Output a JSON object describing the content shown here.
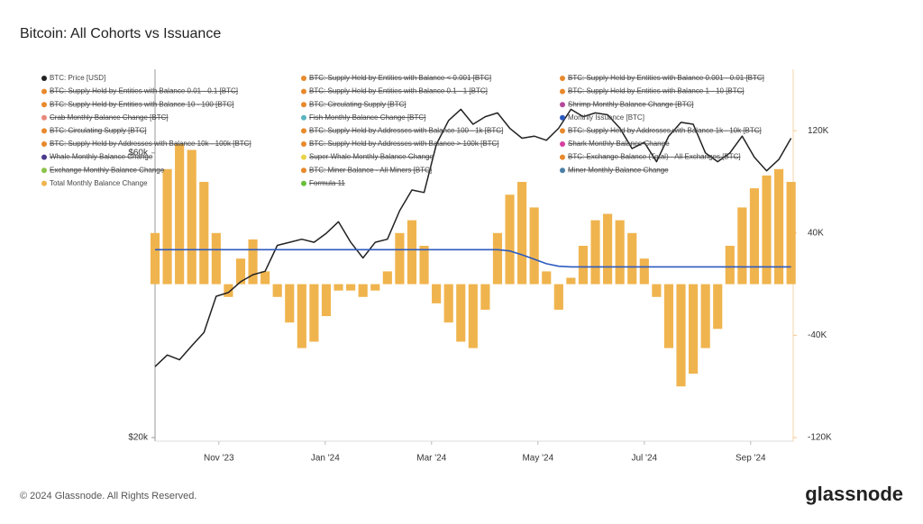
{
  "chart_data": {
    "type": "combo",
    "title": "Bitcoin: All Cohorts vs Issuance",
    "x": [
      9.8,
      10.03,
      10.26,
      10.49,
      10.72,
      10.95,
      11.18,
      11.41,
      11.64,
      11.87,
      12.1,
      12.33,
      12.56,
      12.79,
      13.02,
      13.25,
      13.48,
      13.71,
      13.94,
      14.17,
      14.4,
      14.63,
      14.86,
      15.09,
      15.32,
      15.55,
      15.78,
      16.01,
      16.24,
      16.47,
      16.7,
      16.93,
      17.16,
      17.39,
      17.62,
      17.85,
      18.08,
      18.31,
      18.54,
      18.77,
      19.0,
      19.23,
      19.46,
      19.69,
      19.92,
      20.15,
      20.38,
      20.61,
      20.84,
      21.07,
      21.3,
      21.53,
      21.76
    ],
    "xlim": [
      9.8,
      21.8
    ],
    "xticks": [
      {
        "value": 11,
        "label": "Nov '23"
      },
      {
        "value": 13,
        "label": "Jan '24"
      },
      {
        "value": 15,
        "label": "Mar '24"
      },
      {
        "value": 17,
        "label": "May '24"
      },
      {
        "value": 19,
        "label": "Jul '24"
      },
      {
        "value": 21,
        "label": "Sep '24"
      }
    ],
    "ylim": [
      20000,
      80000
    ],
    "log_scale": true,
    "yticks": [
      {
        "value": 20000,
        "label": "$20k"
      },
      {
        "value": 60000,
        "label": "$60k"
      }
    ],
    "y2lim": [
      -120000,
      161000
    ],
    "y2ticks": [
      {
        "value": 120000,
        "label": "120K"
      },
      {
        "value": 40000,
        "label": "40K"
      },
      {
        "value": -40000,
        "label": "-40K"
      },
      {
        "value": -120000,
        "label": "-120K"
      }
    ],
    "series": [
      {
        "name": "BTC: Price [USD]",
        "color": "#222222",
        "type": "line",
        "axis": "y",
        "values": [
          26300,
          27500,
          27000,
          28500,
          30000,
          34500,
          35000,
          36500,
          37500,
          38000,
          42000,
          42500,
          43000,
          42500,
          44000,
          46000,
          42500,
          40000,
          42500,
          43000,
          48000,
          52000,
          51500,
          62000,
          68000,
          71000,
          67000,
          69000,
          70000,
          66000,
          63500,
          64000,
          63000,
          66000,
          71000,
          69000,
          70000,
          69500,
          66000,
          61000,
          62500,
          58000,
          64000,
          67500,
          67000,
          60000,
          58000,
          60000,
          64000,
          59000,
          56000,
          58500,
          63500
        ]
      },
      {
        "name": "BTC: Supply Held by Entities with Balance < 0.001 [BTC]",
        "color": "#e8892c",
        "visible": false
      },
      {
        "name": "BTC: Supply Held by Entities with Balance 0.001 - 0.01 [BTC]",
        "color": "#e8892c",
        "visible": false
      },
      {
        "name": "BTC: Supply Held by Entities with Balance 0.01 - 0.1 [BTC]",
        "color": "#e8892c",
        "visible": false
      },
      {
        "name": "BTC: Supply Held by Entities with Balance 0.1 - 1 [BTC]",
        "color": "#e8892c",
        "visible": false
      },
      {
        "name": "BTC: Supply Held by Entities with Balance 1 - 10 [BTC]",
        "color": "#e8892c",
        "visible": false
      },
      {
        "name": "BTC: Supply Held by Entities with Balance 10 - 100 [BTC]",
        "color": "#e8892c",
        "visible": false
      },
      {
        "name": "BTC: Circulating Supply [BTC]",
        "color": "#e8892c",
        "visible": false
      },
      {
        "name": "Shrimp Monthly Balance Change [BTC]",
        "color": "#b44a9a",
        "visible": false
      },
      {
        "name": "Crab Monthly Balance Change [BTC]",
        "color": "#e8887a",
        "visible": false
      },
      {
        "name": "Fish Monthly Balance Change [BTC]",
        "color": "#5bb5c0",
        "visible": false
      },
      {
        "name": "Monthly Issuance [BTC]",
        "color": "#2c5bbf",
        "type": "line",
        "axis": "y2",
        "values": [
          27000,
          27000,
          27000,
          27000,
          27000,
          27000,
          27000,
          27000,
          27000,
          27000,
          27000,
          27000,
          27000,
          27000,
          27000,
          27000,
          27000,
          27000,
          27000,
          27000,
          27000,
          27000,
          27000,
          27000,
          27000,
          27000,
          27000,
          27000,
          27000,
          26000,
          23000,
          19500,
          16000,
          14000,
          13500,
          13500,
          13500,
          13500,
          13500,
          13500,
          13500,
          13500,
          13500,
          13500,
          13500,
          13500,
          13500,
          13500,
          13500,
          13500,
          13500,
          13500,
          13500
        ]
      },
      {
        "name": "BTC: Circulating Supply [BTC]",
        "color": "#e8892c",
        "visible": false
      },
      {
        "name": "BTC: Supply Held by Addresses with Balance 100 - 1k [BTC]",
        "color": "#e8892c",
        "visible": false
      },
      {
        "name": "BTC: Supply Held by Addresses with Balance 1k - 10k [BTC]",
        "color": "#e8892c",
        "visible": false
      },
      {
        "name": "BTC: Supply Held by Addresses with Balance 10k - 100k [BTC]",
        "color": "#e8892c",
        "visible": false
      },
      {
        "name": "BTC: Supply Held by Addresses with Balance > 100k [BTC]",
        "color": "#e8892c",
        "visible": false
      },
      {
        "name": "Shark Monthly Balance Change",
        "color": "#d63fa0",
        "visible": false
      },
      {
        "name": "Whale Monthly Balance Change",
        "color": "#4b3c8c",
        "visible": false
      },
      {
        "name": "Super Whale Monthly Balance Change",
        "color": "#e8d44a",
        "visible": false
      },
      {
        "name": "BTC: Exchange Balance (Total) - All Exchanges [BTC]",
        "color": "#e8892c",
        "visible": false
      },
      {
        "name": "Exchange Monthly Balance Change",
        "color": "#8bc34a",
        "visible": false
      },
      {
        "name": "BTC: Miner Balance - All Miners [BTC]",
        "color": "#e8892c",
        "visible": false
      },
      {
        "name": "Miner Monthly Balance Change",
        "color": "#4a7fa6",
        "visible": false
      },
      {
        "name": "Total Monthly Balance Change",
        "color": "#f0b44e",
        "type": "bar",
        "axis": "y2",
        "values": [
          40000,
          90000,
          110000,
          105000,
          80000,
          40000,
          -10000,
          20000,
          35000,
          10000,
          -10000,
          -30000,
          -50000,
          -45000,
          -25000,
          -5000,
          -5000,
          -10000,
          -5000,
          10000,
          40000,
          50000,
          30000,
          -15000,
          -30000,
          -45000,
          -50000,
          -20000,
          40000,
          70000,
          80000,
          60000,
          10000,
          -20000,
          5000,
          30000,
          50000,
          55000,
          50000,
          40000,
          20000,
          -10000,
          -50000,
          -80000,
          -70000,
          -50000,
          -35000,
          30000,
          60000,
          75000,
          85000,
          90000,
          80000
        ]
      },
      {
        "name": "Formula 11",
        "color": "#6abf3a",
        "visible": false
      }
    ]
  },
  "footer": {
    "copyright": "© 2024 Glassnode. All Rights Reserved.",
    "brand": "glassnode"
  }
}
